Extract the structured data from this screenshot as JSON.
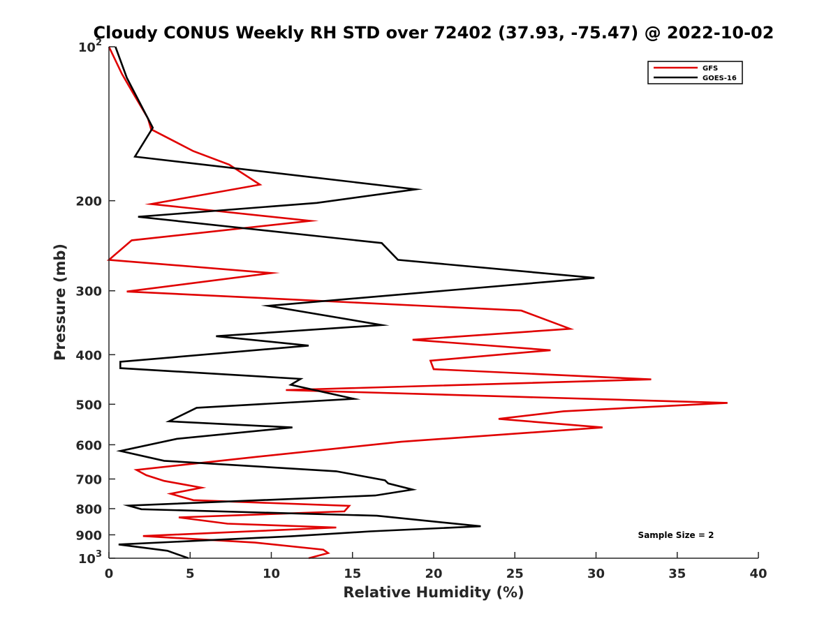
{
  "chart_data": {
    "type": "line",
    "title": "Cloudy CONUS Weekly RH STD over 72402 (37.93, -75.47) @ 2022-10-02",
    "xlabel": "Relative Humidity (%)",
    "ylabel": "Pressure (mb)",
    "xlim": [
      0,
      40
    ],
    "ylim": [
      100,
      1000
    ],
    "y_scale": "log",
    "y_reversed": true,
    "x_ticks": [
      0,
      5,
      10,
      15,
      20,
      25,
      30,
      35,
      40
    ],
    "y_ticks": [
      {
        "value": 100,
        "label": "10",
        "sup": "2"
      },
      {
        "value": 200,
        "label": "200",
        "sup": ""
      },
      {
        "value": 300,
        "label": "300",
        "sup": ""
      },
      {
        "value": 400,
        "label": "400",
        "sup": ""
      },
      {
        "value": 500,
        "label": "500",
        "sup": ""
      },
      {
        "value": 600,
        "label": "600",
        "sup": ""
      },
      {
        "value": 700,
        "label": "700",
        "sup": ""
      },
      {
        "value": 800,
        "label": "800",
        "sup": ""
      },
      {
        "value": 900,
        "label": "900",
        "sup": ""
      },
      {
        "value": 1000,
        "label": "10",
        "sup": "3"
      }
    ],
    "grid": false,
    "legend_position": "top-right",
    "annotation": "Sample Size = 2",
    "series": [
      {
        "name": "GFS",
        "color": "#e00000",
        "points": [
          [
            0,
            100
          ],
          [
            0.8,
            113
          ],
          [
            1.6,
            125
          ],
          [
            2.4,
            138
          ],
          [
            2.6,
            145
          ],
          [
            5.2,
            160
          ],
          [
            7.4,
            170
          ],
          [
            9.3,
            186
          ],
          [
            2.6,
            203
          ],
          [
            12.4,
            219
          ],
          [
            1.4,
            239
          ],
          [
            0,
            261
          ],
          [
            10.0,
            277
          ],
          [
            1.1,
            301
          ],
          [
            25.4,
            328
          ],
          [
            28.4,
            356
          ],
          [
            18.7,
            374
          ],
          [
            27.2,
            392
          ],
          [
            19.8,
            411
          ],
          [
            20.0,
            427
          ],
          [
            33.4,
            447
          ],
          [
            10.9,
            469
          ],
          [
            38.1,
            497
          ],
          [
            28.0,
            516
          ],
          [
            24.0,
            534
          ],
          [
            30.4,
            555
          ],
          [
            18.0,
            592
          ],
          [
            9.0,
            634
          ],
          [
            1.7,
            672
          ],
          [
            2.3,
            688
          ],
          [
            3.4,
            706
          ],
          [
            5.7,
            728
          ],
          [
            3.8,
            748
          ],
          [
            5.2,
            770
          ],
          [
            14.8,
            790
          ],
          [
            14.5,
            810
          ],
          [
            4.3,
            832
          ],
          [
            7.3,
            856
          ],
          [
            14.0,
            871
          ],
          [
            2.1,
            905
          ],
          [
            9.0,
            932
          ],
          [
            13.2,
            962
          ],
          [
            13.5,
            977
          ],
          [
            12.3,
            1000
          ]
        ]
      },
      {
        "name": "GOES-16",
        "color": "#000000",
        "points": [
          [
            0.4,
            100
          ],
          [
            1.1,
            115
          ],
          [
            2.7,
            144
          ],
          [
            1.6,
            164
          ],
          [
            18.9,
            190
          ],
          [
            12.8,
            202
          ],
          [
            1.8,
            215
          ],
          [
            16.8,
            242
          ],
          [
            17.8,
            261
          ],
          [
            29.9,
            283
          ],
          [
            9.8,
            321
          ],
          [
            16.8,
            350
          ],
          [
            6.6,
            368
          ],
          [
            12.3,
            384
          ],
          [
            0.7,
            413
          ],
          [
            0.7,
            425
          ],
          [
            11.8,
            446
          ],
          [
            11.2,
            458
          ],
          [
            15.1,
            488
          ],
          [
            5.4,
            508
          ],
          [
            3.7,
            540
          ],
          [
            11.3,
            555
          ],
          [
            4.2,
            584
          ],
          [
            0.7,
            617
          ],
          [
            3.4,
            645
          ],
          [
            14.0,
            676
          ],
          [
            17.0,
            704
          ],
          [
            17.2,
            714
          ],
          [
            18.7,
            734
          ],
          [
            16.4,
            754
          ],
          [
            1.2,
            789
          ],
          [
            2.0,
            802
          ],
          [
            16.5,
            826
          ],
          [
            22.9,
            866
          ],
          [
            16.1,
            886
          ],
          [
            11.2,
            906
          ],
          [
            0.6,
            940
          ],
          [
            3.6,
            967
          ],
          [
            4.9,
            1000
          ]
        ]
      }
    ]
  }
}
